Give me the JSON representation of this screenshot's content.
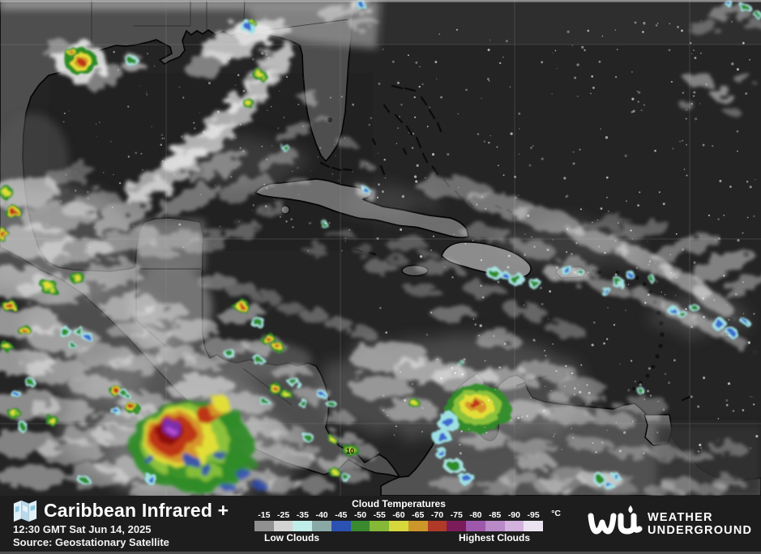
{
  "map": {
    "latitude_label": "10"
  },
  "legend": {
    "title": "Caribbean Infrared +",
    "timestamp": "12:30 GMT Sat Jun 14, 2025",
    "source": "Source: Geostationary Satellite",
    "scale": {
      "title": "Cloud Temperatures",
      "unit": "°C",
      "low_label": "Low Clouds",
      "high_label": "Highest Clouds",
      "ticks": [
        {
          "label": "-15",
          "color": "#909090"
        },
        {
          "label": "-25",
          "color": "#d3d3d3"
        },
        {
          "label": "-35",
          "color": "#bfeeea"
        },
        {
          "label": "-40",
          "color": "#8aa8a6"
        },
        {
          "label": "-45",
          "color": "#2b51b3"
        },
        {
          "label": "-50",
          "color": "#3a8a30"
        },
        {
          "label": "-55",
          "color": "#85b837"
        },
        {
          "label": "-60",
          "color": "#d7d83c"
        },
        {
          "label": "-65",
          "color": "#cc9628"
        },
        {
          "label": "-70",
          "color": "#b03a26"
        },
        {
          "label": "-75",
          "color": "#7c1b5a"
        },
        {
          "label": "-80",
          "color": "#9e58ab"
        },
        {
          "label": "-85",
          "color": "#b989c8"
        },
        {
          "label": "-90",
          "color": "#d3b2de"
        },
        {
          "label": "-95",
          "color": "#ebe4f0"
        }
      ]
    },
    "logo": {
      "line1": "WEATHER",
      "line2": "UNDERGROUND"
    }
  }
}
